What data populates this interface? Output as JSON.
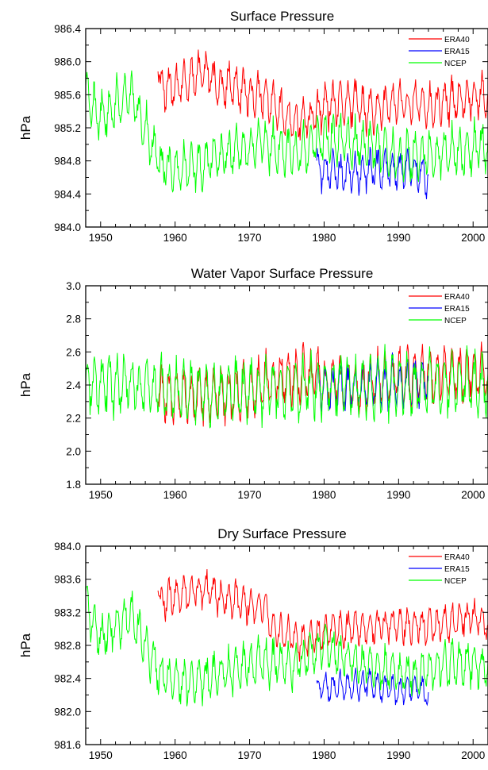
{
  "chart_data": [
    {
      "type": "line",
      "title": "Surface Pressure",
      "xlabel": "",
      "ylabel": "hPa",
      "xlim": [
        1948,
        2002
      ],
      "ylim": [
        984.0,
        986.4
      ],
      "xticks": [
        "1950",
        "1960",
        "1970",
        "1980",
        "1990",
        "2000"
      ],
      "yticks": [
        "984.0",
        "984.4",
        "984.8",
        "985.2",
        "985.6",
        "986.0",
        "986.4"
      ],
      "legend_position": "top-right",
      "series": [
        {
          "name": "ERA40",
          "color": "#ff0000",
          "x": [
            1957.7,
            1958,
            1960,
            1962,
            1964,
            1966,
            1968,
            1970,
            1972,
            1974,
            1976,
            1978,
            1980,
            1982,
            1984,
            1986,
            1988,
            1990,
            1992,
            1994,
            1996,
            1998,
            2000,
            2002
          ],
          "values": [
            986.1,
            985.7,
            985.7,
            985.8,
            985.9,
            985.7,
            985.7,
            985.6,
            985.6,
            985.4,
            985.3,
            985.3,
            985.45,
            985.5,
            985.5,
            985.4,
            985.45,
            985.5,
            985.5,
            985.45,
            985.5,
            985.55,
            985.6,
            985.55
          ],
          "seasonal_amplitude": 0.22
        },
        {
          "name": "ERA15",
          "color": "#0000ff",
          "x": [
            1979,
            1980,
            1982,
            1984,
            1986,
            1988,
            1990,
            1992,
            1994
          ],
          "values": [
            984.75,
            984.7,
            984.65,
            984.65,
            984.7,
            984.7,
            984.7,
            984.7,
            984.6
          ],
          "seasonal_amplitude": 0.2
        },
        {
          "name": "NCEP",
          "color": "#00ff00",
          "x": [
            1948,
            1950,
            1952,
            1954,
            1956,
            1958,
            1960,
            1962,
            1964,
            1966,
            1968,
            1970,
            1972,
            1974,
            1976,
            1978,
            1980,
            1982,
            1984,
            1986,
            1988,
            1990,
            1992,
            1994,
            1996,
            1998,
            2000,
            2002
          ],
          "values": [
            985.6,
            985.3,
            985.5,
            985.6,
            985.2,
            984.75,
            984.7,
            984.7,
            984.75,
            984.85,
            984.9,
            985.0,
            985.0,
            984.95,
            984.9,
            984.95,
            985.1,
            985.05,
            985.0,
            985.0,
            984.95,
            984.85,
            984.85,
            984.85,
            984.9,
            984.9,
            984.95,
            985.0
          ],
          "seasonal_amplitude": 0.25
        }
      ]
    },
    {
      "type": "line",
      "title": "Water Vapor Surface Pressure",
      "xlabel": "",
      "ylabel": "hPa",
      "xlim": [
        1948,
        2002
      ],
      "ylim": [
        1.8,
        3.0
      ],
      "xticks": [
        "1950",
        "1960",
        "1970",
        "1980",
        "1990",
        "2000"
      ],
      "yticks": [
        "1.8",
        "2.0",
        "2.2",
        "2.4",
        "2.6",
        "2.8",
        "3.0"
      ],
      "legend_position": "top-right",
      "series": [
        {
          "name": "ERA40",
          "color": "#ff0000",
          "x": [
            1957.7,
            1960,
            1962,
            1964,
            1966,
            1968,
            1970,
            1972,
            1974,
            1976,
            1978,
            1980,
            1982,
            1984,
            1986,
            1988,
            1990,
            1992,
            1994,
            1996,
            1998,
            2000,
            2002
          ],
          "values": [
            2.36,
            2.33,
            2.32,
            2.33,
            2.34,
            2.35,
            2.36,
            2.42,
            2.45,
            2.45,
            2.46,
            2.42,
            2.41,
            2.4,
            2.41,
            2.44,
            2.45,
            2.45,
            2.46,
            2.46,
            2.47,
            2.47,
            2.48
          ],
          "seasonal_amplitude": 0.14
        },
        {
          "name": "ERA15",
          "color": "#0000ff",
          "x": [
            1979,
            1980,
            1982,
            1984,
            1986,
            1988,
            1990,
            1992,
            1994
          ],
          "values": [
            2.38,
            2.39,
            2.38,
            2.37,
            2.39,
            2.4,
            2.4,
            2.41,
            2.42
          ],
          "seasonal_amplitude": 0.12
        },
        {
          "name": "NCEP",
          "color": "#00ff00",
          "x": [
            1948,
            1950,
            1952,
            1954,
            1956,
            1958,
            1960,
            1962,
            1964,
            1966,
            1968,
            1970,
            1972,
            1974,
            1976,
            1978,
            1980,
            1982,
            1984,
            1986,
            1988,
            1990,
            1992,
            1994,
            1996,
            1998,
            2000,
            2002
          ],
          "values": [
            2.39,
            2.4,
            2.4,
            2.39,
            2.38,
            2.38,
            2.37,
            2.36,
            2.36,
            2.36,
            2.37,
            2.37,
            2.38,
            2.38,
            2.37,
            2.38,
            2.4,
            2.4,
            2.4,
            2.4,
            2.41,
            2.4,
            2.39,
            2.4,
            2.4,
            2.41,
            2.4,
            2.41
          ],
          "seasonal_amplitude": 0.15
        }
      ]
    },
    {
      "type": "line",
      "title": "Dry Surface Pressure",
      "xlabel": "",
      "ylabel": "hPa",
      "xlim": [
        1948,
        2002
      ],
      "ylim": [
        981.6,
        984.0
      ],
      "xticks": [
        "1950",
        "1960",
        "1970",
        "1980",
        "1990",
        "2000"
      ],
      "yticks": [
        "981.6",
        "982.0",
        "982.4",
        "982.8",
        "983.2",
        "983.6",
        "984.0"
      ],
      "legend_position": "top-right",
      "series": [
        {
          "name": "ERA40",
          "color": "#ff0000",
          "x": [
            1957.7,
            1958,
            1960,
            1962,
            1964,
            1966,
            1968,
            1970,
            1972,
            1973,
            1974,
            1976,
            1978,
            1980,
            1982,
            1984,
            1986,
            1988,
            1990,
            1992,
            1994,
            1996,
            1998,
            2000,
            2002
          ],
          "values": [
            983.6,
            983.3,
            983.4,
            983.45,
            983.5,
            983.4,
            983.35,
            983.3,
            983.3,
            983.0,
            982.95,
            982.9,
            982.85,
            983.0,
            983.0,
            983.0,
            983.0,
            983.05,
            983.05,
            983.05,
            983.05,
            983.05,
            983.1,
            983.15,
            983.05
          ],
          "seasonal_amplitude": 0.18
        },
        {
          "name": "ERA15",
          "color": "#0000ff",
          "x": [
            1979,
            1980,
            1982,
            1984,
            1986,
            1988,
            1990,
            1992,
            1994
          ],
          "values": [
            982.3,
            982.3,
            982.3,
            982.3,
            982.35,
            982.3,
            982.25,
            982.3,
            982.2
          ],
          "seasonal_amplitude": 0.15
        },
        {
          "name": "NCEP",
          "color": "#00ff00",
          "x": [
            1948,
            1950,
            1952,
            1954,
            1956,
            1958,
            1960,
            1962,
            1964,
            1966,
            1968,
            1970,
            1972,
            1974,
            1976,
            1978,
            1980,
            1982,
            1984,
            1986,
            1988,
            1990,
            1992,
            1994,
            1996,
            1998,
            2000,
            2002
          ],
          "values": [
            983.3,
            982.9,
            983.0,
            983.2,
            982.8,
            982.45,
            982.4,
            982.35,
            982.4,
            982.45,
            982.5,
            982.55,
            982.6,
            982.6,
            982.55,
            982.7,
            982.8,
            982.7,
            982.6,
            982.55,
            982.5,
            982.45,
            982.45,
            982.5,
            982.55,
            982.55,
            982.6,
            982.55
          ],
          "seasonal_amplitude": 0.22
        }
      ]
    }
  ]
}
